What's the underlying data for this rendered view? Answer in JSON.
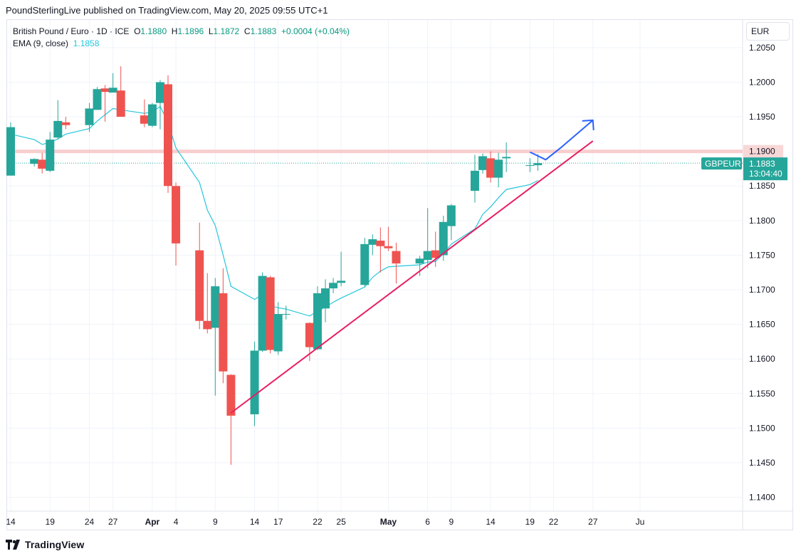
{
  "header": {
    "caption": "PoundSterlingLive published on TradingView.com, May 20, 2025 09:55 UTC+1"
  },
  "legend": {
    "symbol": "British Pound / Euro · 1D · ICE",
    "open_label": "O",
    "open": "1.1880",
    "high_label": "H",
    "high": "1.1896",
    "low_label": "L",
    "low": "1.1872",
    "close_label": "C",
    "close": "1.1883",
    "change": "+0.0004 (+0.04%)",
    "ema_label": "EMA (9, close)",
    "ema_value": "1.1858"
  },
  "currency": "EUR",
  "footer": {
    "brand": "TradingView"
  },
  "colors": {
    "up": "#26a69a",
    "down": "#ef5350",
    "ema": "#26c6da",
    "trendline": "#e91e63",
    "projection": "#2962ff",
    "resistance": "#f8c5c5",
    "price_label": "#26a69a"
  },
  "price_tag": {
    "symbol": "GBPEUR",
    "price": "1.1883",
    "countdown": "13:04:40",
    "level_label": "1.1900"
  },
  "chart_data": {
    "type": "candlestick",
    "title": "British Pound / Euro · 1D · ICE",
    "ylim": [
      1.138,
      1.209
    ],
    "y_ticks": [
      "1.2050",
      "1.2000",
      "1.1950",
      "1.1900",
      "1.1850",
      "1.1800",
      "1.1750",
      "1.1700",
      "1.1650",
      "1.1600",
      "1.1550",
      "1.1500",
      "1.1450",
      "1.1400"
    ],
    "x_ticks": [
      {
        "label": "14",
        "date": "2025-03-14"
      },
      {
        "label": "19",
        "date": "2025-03-19"
      },
      {
        "label": "24",
        "date": "2025-03-24"
      },
      {
        "label": "27",
        "date": "2025-03-27"
      },
      {
        "label": "Apr",
        "date": "2025-04-01"
      },
      {
        "label": "4",
        "date": "2025-04-04"
      },
      {
        "label": "9",
        "date": "2025-04-09"
      },
      {
        "label": "14",
        "date": "2025-04-14"
      },
      {
        "label": "17",
        "date": "2025-04-17"
      },
      {
        "label": "22",
        "date": "2025-04-22"
      },
      {
        "label": "25",
        "date": "2025-04-25"
      },
      {
        "label": "May",
        "date": "2025-05-01"
      },
      {
        "label": "6",
        "date": "2025-05-06"
      },
      {
        "label": "9",
        "date": "2025-05-09"
      },
      {
        "label": "14",
        "date": "2025-05-14"
      },
      {
        "label": "19",
        "date": "2025-05-19"
      },
      {
        "label": "22",
        "date": "2025-05-22"
      },
      {
        "label": "27",
        "date": "2025-05-27"
      },
      {
        "label": "Ju",
        "date": "2025-06-02"
      }
    ],
    "candles": [
      {
        "date": "2025-03-14",
        "o": 1.1865,
        "h": 1.1942,
        "l": 1.1865,
        "c": 1.1935
      },
      {
        "date": "2025-03-17",
        "o": 1.1882,
        "h": 1.189,
        "l": 1.1878,
        "c": 1.1889
      },
      {
        "date": "2025-03-18",
        "o": 1.1888,
        "h": 1.1898,
        "l": 1.1868,
        "c": 1.1875
      },
      {
        "date": "2025-03-19",
        "o": 1.1872,
        "h": 1.1928,
        "l": 1.187,
        "c": 1.1917
      },
      {
        "date": "2025-03-20",
        "o": 1.192,
        "h": 1.1974,
        "l": 1.1918,
        "c": 1.1944
      },
      {
        "date": "2025-03-21",
        "o": 1.1942,
        "h": 1.195,
        "l": 1.1932,
        "c": 1.1938
      },
      {
        "date": "2025-03-24",
        "o": 1.1938,
        "h": 1.197,
        "l": 1.1928,
        "c": 1.1962
      },
      {
        "date": "2025-03-25",
        "o": 1.196,
        "h": 1.1993,
        "l": 1.196,
        "c": 1.199
      },
      {
        "date": "2025-03-26",
        "o": 1.1991,
        "h": 1.1996,
        "l": 1.1943,
        "c": 1.1986
      },
      {
        "date": "2025-03-27",
        "o": 1.1985,
        "h": 1.2013,
        "l": 1.1985,
        "c": 1.1992
      },
      {
        "date": "2025-03-28",
        "o": 1.1988,
        "h": 1.2023,
        "l": 1.195,
        "c": 1.195
      },
      {
        "date": "2025-03-31",
        "o": 1.1952,
        "h": 1.1975,
        "l": 1.1935,
        "c": 1.194
      },
      {
        "date": "2025-04-01",
        "o": 1.1937,
        "h": 1.197,
        "l": 1.1935,
        "c": 1.1968
      },
      {
        "date": "2025-04-02",
        "o": 1.197,
        "h": 1.2003,
        "l": 1.1932,
        "c": 1.2
      },
      {
        "date": "2025-04-03",
        "o": 1.1997,
        "h": 1.201,
        "l": 1.184,
        "c": 1.185
      },
      {
        "date": "2025-04-04",
        "o": 1.185,
        "h": 1.1855,
        "l": 1.1735,
        "c": 1.1767
      },
      {
        "date": "2025-04-07",
        "o": 1.1757,
        "h": 1.1797,
        "l": 1.1643,
        "c": 1.1655
      },
      {
        "date": "2025-04-08",
        "o": 1.1655,
        "h": 1.1724,
        "l": 1.1637,
        "c": 1.1643
      },
      {
        "date": "2025-04-09",
        "o": 1.1645,
        "h": 1.1717,
        "l": 1.1547,
        "c": 1.1705
      },
      {
        "date": "2025-04-10",
        "o": 1.1695,
        "h": 1.1731,
        "l": 1.1565,
        "c": 1.1582
      },
      {
        "date": "2025-04-11",
        "o": 1.1577,
        "h": 1.1578,
        "l": 1.1447,
        "c": 1.1518
      },
      {
        "date": "2025-04-14",
        "o": 1.152,
        "h": 1.1625,
        "l": 1.1503,
        "c": 1.1612
      },
      {
        "date": "2025-04-15",
        "o": 1.1612,
        "h": 1.1725,
        "l": 1.161,
        "c": 1.172
      },
      {
        "date": "2025-04-16",
        "o": 1.1718,
        "h": 1.172,
        "l": 1.1608,
        "c": 1.1613
      },
      {
        "date": "2025-04-17",
        "o": 1.1611,
        "h": 1.1682,
        "l": 1.1606,
        "c": 1.1665
      },
      {
        "date": "2025-04-18",
        "o": 1.1664,
        "h": 1.1677,
        "l": 1.1657,
        "c": 1.1665
      },
      {
        "date": "2025-04-21",
        "o": 1.1652,
        "h": 1.1653,
        "l": 1.1597,
        "c": 1.1617
      },
      {
        "date": "2025-04-22",
        "o": 1.1614,
        "h": 1.1705,
        "l": 1.1613,
        "c": 1.1695
      },
      {
        "date": "2025-04-23",
        "o": 1.1673,
        "h": 1.1715,
        "l": 1.1653,
        "c": 1.1702
      },
      {
        "date": "2025-04-24",
        "o": 1.1702,
        "h": 1.1717,
        "l": 1.1695,
        "c": 1.171
      },
      {
        "date": "2025-04-25",
        "o": 1.171,
        "h": 1.1755,
        "l": 1.1705,
        "c": 1.1713
      },
      {
        "date": "2025-04-28",
        "o": 1.1707,
        "h": 1.1775,
        "l": 1.1705,
        "c": 1.1766
      },
      {
        "date": "2025-04-29",
        "o": 1.1765,
        "h": 1.178,
        "l": 1.175,
        "c": 1.1773
      },
      {
        "date": "2025-04-30",
        "o": 1.1771,
        "h": 1.179,
        "l": 1.1725,
        "c": 1.1763
      },
      {
        "date": "2025-05-01",
        "o": 1.1763,
        "h": 1.1791,
        "l": 1.1756,
        "c": 1.176
      },
      {
        "date": "2025-05-02",
        "o": 1.1756,
        "h": 1.1768,
        "l": 1.1709,
        "c": 1.1738
      },
      {
        "date": "2025-05-05",
        "o": 1.1738,
        "h": 1.1749,
        "l": 1.172,
        "c": 1.1745
      },
      {
        "date": "2025-05-06",
        "o": 1.1743,
        "h": 1.1818,
        "l": 1.1731,
        "c": 1.1756
      },
      {
        "date": "2025-05-07",
        "o": 1.1757,
        "h": 1.1784,
        "l": 1.1733,
        "c": 1.1746
      },
      {
        "date": "2025-05-08",
        "o": 1.175,
        "h": 1.1807,
        "l": 1.1742,
        "c": 1.1798
      },
      {
        "date": "2025-05-09",
        "o": 1.1792,
        "h": 1.1824,
        "l": 1.1772,
        "c": 1.1822
      },
      {
        "date": "2025-05-12",
        "o": 1.1843,
        "h": 1.1895,
        "l": 1.1826,
        "c": 1.1872
      },
      {
        "date": "2025-05-13",
        "o": 1.1873,
        "h": 1.1897,
        "l": 1.1868,
        "c": 1.1893
      },
      {
        "date": "2025-05-14",
        "o": 1.189,
        "h": 1.19,
        "l": 1.1855,
        "c": 1.1862
      },
      {
        "date": "2025-05-15",
        "o": 1.1862,
        "h": 1.1898,
        "l": 1.1848,
        "c": 1.1888
      },
      {
        "date": "2025-05-16",
        "o": 1.189,
        "h": 1.1913,
        "l": 1.187,
        "c": 1.1892
      },
      {
        "date": "2025-05-19",
        "o": 1.188,
        "h": 1.189,
        "l": 1.187,
        "c": 1.188
      },
      {
        "date": "2025-05-20",
        "o": 1.188,
        "h": 1.1896,
        "l": 1.1872,
        "c": 1.1883
      }
    ],
    "ema": {
      "name": "EMA (9, close)",
      "points": [
        {
          "date": "2025-03-14",
          "y": 1.1925
        },
        {
          "date": "2025-03-17",
          "y": 1.1917
        },
        {
          "date": "2025-03-18",
          "y": 1.191
        },
        {
          "date": "2025-03-19",
          "y": 1.1913
        },
        {
          "date": "2025-03-20",
          "y": 1.1918
        },
        {
          "date": "2025-03-21",
          "y": 1.1925
        },
        {
          "date": "2025-03-24",
          "y": 1.1933
        },
        {
          "date": "2025-03-25",
          "y": 1.1944
        },
        {
          "date": "2025-03-26",
          "y": 1.1953
        },
        {
          "date": "2025-03-27",
          "y": 1.1962
        },
        {
          "date": "2025-03-28",
          "y": 1.196
        },
        {
          "date": "2025-03-31",
          "y": 1.1955
        },
        {
          "date": "2025-04-01",
          "y": 1.1957
        },
        {
          "date": "2025-04-02",
          "y": 1.1965
        },
        {
          "date": "2025-04-03",
          "y": 1.1942
        },
        {
          "date": "2025-04-04",
          "y": 1.1905
        },
        {
          "date": "2025-04-07",
          "y": 1.1855
        },
        {
          "date": "2025-04-08",
          "y": 1.1815
        },
        {
          "date": "2025-04-09",
          "y": 1.1793
        },
        {
          "date": "2025-04-10",
          "y": 1.175
        },
        {
          "date": "2025-04-11",
          "y": 1.1705
        },
        {
          "date": "2025-04-14",
          "y": 1.1686
        },
        {
          "date": "2025-04-15",
          "y": 1.1693
        },
        {
          "date": "2025-04-16",
          "y": 1.1677
        },
        {
          "date": "2025-04-17",
          "y": 1.1674
        },
        {
          "date": "2025-04-18",
          "y": 1.1672
        },
        {
          "date": "2025-04-21",
          "y": 1.1662
        },
        {
          "date": "2025-04-22",
          "y": 1.1669
        },
        {
          "date": "2025-04-23",
          "y": 1.1675
        },
        {
          "date": "2025-04-24",
          "y": 1.1682
        },
        {
          "date": "2025-04-25",
          "y": 1.1688
        },
        {
          "date": "2025-04-28",
          "y": 1.1704
        },
        {
          "date": "2025-04-29",
          "y": 1.1718
        },
        {
          "date": "2025-04-30",
          "y": 1.1727
        },
        {
          "date": "2025-05-01",
          "y": 1.1733
        },
        {
          "date": "2025-05-02",
          "y": 1.1734
        },
        {
          "date": "2025-05-05",
          "y": 1.1736
        },
        {
          "date": "2025-05-06",
          "y": 1.174
        },
        {
          "date": "2025-05-07",
          "y": 1.1741
        },
        {
          "date": "2025-05-08",
          "y": 1.1752
        },
        {
          "date": "2025-05-09",
          "y": 1.1766
        },
        {
          "date": "2025-05-12",
          "y": 1.1788
        },
        {
          "date": "2025-05-13",
          "y": 1.1809
        },
        {
          "date": "2025-05-14",
          "y": 1.182
        },
        {
          "date": "2025-05-15",
          "y": 1.1833
        },
        {
          "date": "2025-05-16",
          "y": 1.1845
        },
        {
          "date": "2025-05-19",
          "y": 1.1852
        },
        {
          "date": "2025-05-20",
          "y": 1.1858
        }
      ]
    },
    "resistance_level": 1.19,
    "last_price": 1.1883,
    "trendline": [
      {
        "date": "2025-04-11",
        "y": 1.1522
      },
      {
        "date": "2025-05-27",
        "y": 1.1915
      }
    ],
    "projection": [
      {
        "date": "2025-05-19",
        "y": 1.1899
      },
      {
        "date": "2025-05-21",
        "y": 1.1888
      },
      {
        "date": "2025-05-23",
        "y": 1.1906
      },
      {
        "date": "2025-05-27",
        "y": 1.1945
      }
    ],
    "grid": true
  }
}
